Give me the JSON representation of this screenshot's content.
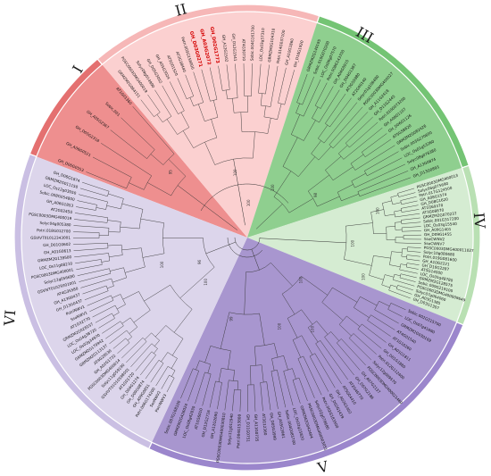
{
  "figure": {
    "clades": [
      {
        "id": "I",
        "label": "I",
        "fill": "#ee8f8f",
        "ring": "#e47070"
      },
      {
        "id": "II",
        "label": "II",
        "fill": "#fbd0d0",
        "ring": "#f6b7b7"
      },
      {
        "id": "III",
        "label": "III",
        "fill": "#8fcf8f",
        "ring": "#74c474"
      },
      {
        "id": "IV",
        "label": "IV",
        "fill": "#d5ecd2",
        "ring": "#b9e0b3"
      },
      {
        "id": "V",
        "label": "V",
        "fill": "#a896cf",
        "ring": "#9b86cc"
      },
      {
        "id": "VI",
        "label": "VI",
        "fill": "#dcd5eb",
        "ring": "#cabfe3"
      }
    ],
    "highlighted_genes": [
      "GH_D03G0271",
      "GH_A03G2072",
      "GH_D02G1773"
    ],
    "leaf_labels": {
      "I": [
        "GH_D06G0553",
        "GH_A06G0521",
        "GH_D05G2318",
        "GH_A05G2367",
        "Sobic.001",
        "AT1G01360"
      ],
      "II": [
        "GRMZM2G064151",
        "PGSC0003DMG400019",
        "Solyc09g014990",
        "GH_D05G3052",
        "GH_A05G3024",
        "AT5G01520",
        "AT2G38440",
        "Potri.005G158000",
        "GH_D03G0271",
        "GH_A03G2072",
        "GH_D02G1773",
        "GH_A12G1502",
        "GH_D12G1541",
        "AT4G30710",
        "Sobic.004G161700",
        "LOC_Os03g57310",
        "GRMZM2G104310",
        "Potri.014G037100",
        "GH_A10G1860",
        "GH_D10G1920"
      ],
      "III": [
        "GRMZM2G140195",
        "Sobic.010G070200",
        "LOC_Os06g07570",
        "Potri.008G143700",
        "GH_A04G0915",
        "GH_D04G1387",
        "AT3G55980",
        "AT2G40140",
        "Solyc01g106480",
        "PGSC0003DMG400027",
        "GH_A11G2418",
        "GH_D11G2445",
        "Potri.010G073200",
        "GH_A06G1107",
        "GH_D06G1126",
        "AT5G58620",
        "GRMZM2G082426",
        "Sobic.003G270600",
        "LOC_Os01g53260",
        "Solyc08g076380",
        "GH_A13G0874",
        "GH_D13G0893"
      ],
      "IV": [
        "PGSC0003DMG400013",
        "Solyc06g075690",
        "Potri.017G124500",
        "GH_A08G1574",
        "GH_D08G1620",
        "AT1G69370",
        "AT3G08870",
        "GRMZM2G070237",
        "Sobic.001G317200",
        "LOC_Os03g15540",
        "GH_A09G1401",
        "GH_D09G1455",
        "SsoCWNV2",
        "SsoCWNV7",
        "PGSC0003DMG400011027",
        "Solyc10g080680",
        "Potri.019G081600",
        "GH_A10G2221",
        "GH_D10G2287",
        "AT5G14000",
        "LOC_Os05g48780",
        "GRMZM2G128575",
        "Sobic.009G219100",
        "PGSC0003DMG400009649",
        "Solyc07g064060",
        "GH_A03G1385",
        "GH_D03G1307"
      ],
      "V": [
        "Sobic.002G315700",
        "LOC_Os07g41690",
        "GRMZM2G030169",
        "AT4G01540",
        "AT1G10260",
        "GH_A01G1811",
        "GH_D01G1880",
        "Potri.012G112400",
        "Solyc12g009570",
        "PGSC0003DMG400021460",
        "GH_A07G2137",
        "GH_D07G2186",
        "AT2G46770",
        "AT5G04410",
        "GH_A02G1402",
        "GH_D02G1439",
        "Potri.002G183500",
        "Solyc02g079680",
        "PGSC0003DMG400003051",
        "GRMZM2G042404",
        "LOC_Os02g15820",
        "Sobic.004G085700",
        "GH_A05G3961",
        "GH_D05G3999",
        "AT3G12360",
        "GH_A11G0735",
        "GH_D11G0751",
        "Potri.004G153800",
        "Solyc11g012940",
        "PGSC0003DMG400030810",
        "GH_A12G2690",
        "GH_D12G2716",
        "AT1G56010",
        "LOC_Os08g42830",
        "GRMZM2G426024",
        "Sobic.007G168100"
      ],
      "VI": [
        "PotriNWV3",
        "SsoNWV2",
        "Potri.006G174200",
        "GH_A09G0851",
        "GH_D09G0874",
        "GH_D04G1274",
        "AT1G01720",
        "GSVIVT01010598001",
        "Solyc11g059190",
        "PGSC0003DMG400014",
        "GH_A02G1732",
        "AT4G28530",
        "GRMZM2G113137",
        "GRMZM2G179942",
        "LOC_Os02g34970",
        "LOC_Os04g38720",
        "GRMZM2G028157",
        "AT1G32770",
        "SsoNWV1",
        "PotriNWV1",
        "GH_D13G0437",
        "GH_A13G0437",
        "AT4G35580",
        "GSVIVT01029301001",
        "Solyc12g056690",
        "PGSC0003DMG400001",
        "LOC_Os11g08210",
        "GRMZM2G139500",
        "GH_A01G0613",
        "GH_D01G0602",
        "GSVIVT01012343001",
        "Potri.018G012700",
        "Solyc04g005380",
        "PGSC0003DMG400019",
        "AT2G02450",
        "GH_A06G1853",
        "Sobic.008G054800",
        "LOC_Os12g03050",
        "GRMZM2G011150",
        "GH_D06G1874"
      ]
    },
    "bootstrap_values": [
      "100",
      "100",
      "98",
      "100",
      "100",
      "100",
      "99",
      "100",
      "100",
      "95",
      "100",
      "100",
      "100",
      "96",
      "100"
    ]
  }
}
